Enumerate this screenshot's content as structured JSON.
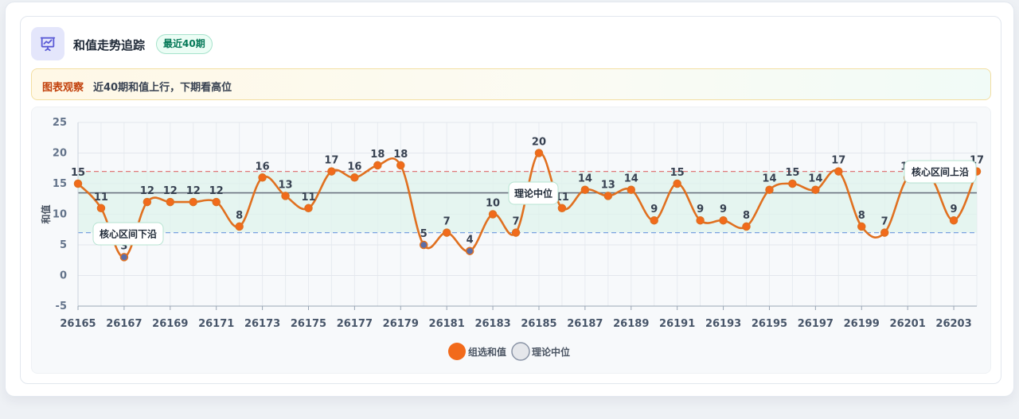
{
  "header": {
    "title": "和值走势追踪",
    "badge": "最近40期",
    "icon": "presentation-chart-icon"
  },
  "observation": {
    "label": "图表观察",
    "text": "近40期和值上行，下期看高位"
  },
  "colors": {
    "line": "#e07020",
    "point_fill": "#f26a1b",
    "point_low_fill": "#5b6ea8",
    "median_line": "#6b7280",
    "upper_line": "#e07a7a",
    "lower_line": "#7aa2e0",
    "band": "#dff3ec",
    "accent": "#5b5bd6"
  },
  "chart_data": {
    "type": "line",
    "x": [
      26165,
      26166,
      26167,
      26168,
      26169,
      26170,
      26171,
      26172,
      26173,
      26174,
      26175,
      26176,
      26177,
      26178,
      26179,
      26180,
      26181,
      26182,
      26183,
      26184,
      26185,
      26186,
      26187,
      26188,
      26189,
      26190,
      26191,
      26192,
      26193,
      26194,
      26195,
      26196,
      26197,
      26198,
      26199,
      26200,
      26201,
      26202,
      26203,
      26204
    ],
    "x_tick_labels": [
      "26165",
      "26167",
      "26169",
      "26171",
      "26173",
      "26175",
      "26177",
      "26179",
      "26181",
      "26183",
      "26185",
      "26187",
      "26189",
      "26191",
      "26193",
      "26195",
      "26197",
      "26199",
      "26201",
      "26203"
    ],
    "series": [
      {
        "name": "组选和值",
        "values": [
          15,
          11,
          3,
          12,
          12,
          12,
          12,
          8,
          16,
          13,
          11,
          17,
          16,
          18,
          18,
          5,
          7,
          4,
          10,
          7,
          20,
          11,
          14,
          13,
          14,
          9,
          15,
          9,
          9,
          8,
          14,
          15,
          14,
          17,
          8,
          7,
          16,
          16,
          9,
          17
        ]
      }
    ],
    "reference_lines": [
      {
        "name": "理论中位",
        "value": 13.5,
        "label": "理论中位"
      },
      {
        "name": "upper",
        "value": 17,
        "label": "核心区间上沿"
      },
      {
        "name": "lower",
        "value": 7,
        "label": "核心区间下沿"
      }
    ],
    "legend": [
      "组选和值",
      "理论中位"
    ],
    "legend_position": "bottom",
    "ylabel": "和值",
    "ylim": [
      -5,
      25
    ],
    "yticks": [
      -5,
      0,
      5,
      10,
      15,
      20,
      25
    ],
    "grid": true
  }
}
